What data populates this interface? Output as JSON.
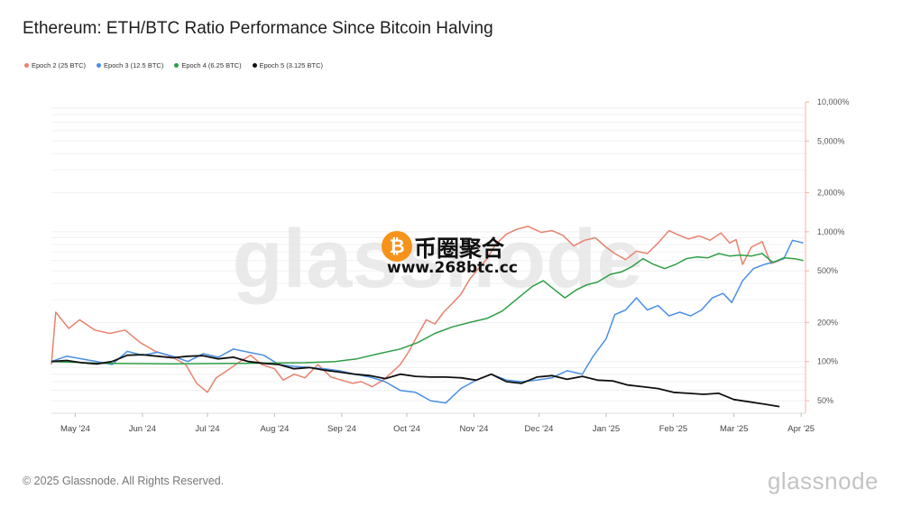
{
  "title": "Ethereum: ETH/BTC Ratio Performance Since Bitcoin Halving",
  "footer": "© 2025 Glassnode. All Rights Reserved.",
  "brand": "glassnode",
  "watermark": "glassnode",
  "overlay": {
    "coin_symbol": "₿",
    "title": "币圈聚合",
    "url": "www.268btc.cc"
  },
  "chart_data": {
    "type": "line",
    "title": "Ethereum: ETH/BTC Ratio Performance Since Bitcoin Halving",
    "xlabel": "",
    "ylabel": "",
    "y_scale": "log",
    "ylim": [
      40,
      10000
    ],
    "x_range": [
      "2024-04-20",
      "2025-04-03"
    ],
    "x_ticks": [
      {
        "date": "2024-05-01",
        "label": "May '24"
      },
      {
        "date": "2024-06-01",
        "label": "Jun '24"
      },
      {
        "date": "2024-07-01",
        "label": "Jul '24"
      },
      {
        "date": "2024-08-01",
        "label": "Aug '24"
      },
      {
        "date": "2024-09-01",
        "label": "Sep '24"
      },
      {
        "date": "2024-10-01",
        "label": "Oct '24"
      },
      {
        "date": "2024-11-01",
        "label": "Nov '24"
      },
      {
        "date": "2024-12-01",
        "label": "Dec '24"
      },
      {
        "date": "2025-01-01",
        "label": "Jan '25"
      },
      {
        "date": "2025-02-01",
        "label": "Feb '25"
      },
      {
        "date": "2025-03-01",
        "label": "Mar '25"
      },
      {
        "date": "2025-04-01",
        "label": "Apr '25"
      }
    ],
    "y_ticks": [
      {
        "value": 50,
        "label": "50%"
      },
      {
        "value": 100,
        "label": "100%"
      },
      {
        "value": 200,
        "label": "200%"
      },
      {
        "value": 500,
        "label": "500%"
      },
      {
        "value": 1000,
        "label": "1,000%"
      },
      {
        "value": 2000,
        "label": "2,000%"
      },
      {
        "value": 5000,
        "label": "5,000%"
      },
      {
        "value": 10000,
        "label": "10,000%"
      }
    ],
    "grid": true,
    "legend_position": "top-left",
    "series": [
      {
        "name": "Epoch 2 (25 BTC)",
        "color": "#e8826e",
        "points": [
          [
            "2024-04-20",
            95
          ],
          [
            "2024-04-22",
            240
          ],
          [
            "2024-04-28",
            180
          ],
          [
            "2024-05-03",
            210
          ],
          [
            "2024-05-10",
            175
          ],
          [
            "2024-05-17",
            165
          ],
          [
            "2024-05-24",
            175
          ],
          [
            "2024-05-31",
            140
          ],
          [
            "2024-06-07",
            120
          ],
          [
            "2024-06-14",
            110
          ],
          [
            "2024-06-21",
            95
          ],
          [
            "2024-06-26",
            68
          ],
          [
            "2024-07-01",
            58
          ],
          [
            "2024-07-05",
            75
          ],
          [
            "2024-07-10",
            85
          ],
          [
            "2024-07-16",
            100
          ],
          [
            "2024-07-21",
            112
          ],
          [
            "2024-07-26",
            95
          ],
          [
            "2024-08-01",
            88
          ],
          [
            "2024-08-05",
            72
          ],
          [
            "2024-08-10",
            80
          ],
          [
            "2024-08-15",
            75
          ],
          [
            "2024-08-21",
            95
          ],
          [
            "2024-08-27",
            76
          ],
          [
            "2024-09-01",
            72
          ],
          [
            "2024-09-06",
            68
          ],
          [
            "2024-09-10",
            70
          ],
          [
            "2024-09-15",
            64
          ],
          [
            "2024-09-20",
            72
          ],
          [
            "2024-09-24",
            82
          ],
          [
            "2024-09-28",
            95
          ],
          [
            "2024-10-02",
            120
          ],
          [
            "2024-10-06",
            160
          ],
          [
            "2024-10-10",
            210
          ],
          [
            "2024-10-14",
            195
          ],
          [
            "2024-10-18",
            240
          ],
          [
            "2024-10-22",
            280
          ],
          [
            "2024-10-26",
            330
          ],
          [
            "2024-10-30",
            430
          ],
          [
            "2024-11-03",
            520
          ],
          [
            "2024-11-07",
            620
          ],
          [
            "2024-11-11",
            800
          ],
          [
            "2024-11-16",
            960
          ],
          [
            "2024-11-21",
            1050
          ],
          [
            "2024-11-26",
            1100
          ],
          [
            "2024-12-02",
            990
          ],
          [
            "2024-12-07",
            1020
          ],
          [
            "2024-12-12",
            940
          ],
          [
            "2024-12-17",
            780
          ],
          [
            "2024-12-22",
            860
          ],
          [
            "2024-12-27",
            900
          ],
          [
            "2025-01-01",
            760
          ],
          [
            "2025-01-05",
            680
          ],
          [
            "2025-01-10",
            610
          ],
          [
            "2025-01-15",
            710
          ],
          [
            "2025-01-20",
            680
          ],
          [
            "2025-01-25",
            820
          ],
          [
            "2025-01-30",
            1020
          ],
          [
            "2025-02-03",
            950
          ],
          [
            "2025-02-08",
            880
          ],
          [
            "2025-02-13",
            930
          ],
          [
            "2025-02-18",
            860
          ],
          [
            "2025-02-23",
            980
          ],
          [
            "2025-02-27",
            820
          ],
          [
            "2025-03-02",
            870
          ],
          [
            "2025-03-05",
            560
          ],
          [
            "2025-03-09",
            760
          ],
          [
            "2025-03-14",
            840
          ],
          [
            "2025-03-18",
            570
          ],
          [
            "2025-03-22",
            600
          ]
        ]
      },
      {
        "name": "Epoch 3 (12.5 BTC)",
        "color": "#4a8fe7",
        "points": [
          [
            "2024-04-20",
            100
          ],
          [
            "2024-04-27",
            110
          ],
          [
            "2024-05-04",
            105
          ],
          [
            "2024-05-11",
            100
          ],
          [
            "2024-05-18",
            95
          ],
          [
            "2024-05-25",
            120
          ],
          [
            "2024-06-01",
            112
          ],
          [
            "2024-06-08",
            118
          ],
          [
            "2024-06-15",
            110
          ],
          [
            "2024-06-22",
            100
          ],
          [
            "2024-06-29",
            115
          ],
          [
            "2024-07-06",
            108
          ],
          [
            "2024-07-13",
            125
          ],
          [
            "2024-07-20",
            118
          ],
          [
            "2024-07-27",
            112
          ],
          [
            "2024-08-03",
            95
          ],
          [
            "2024-08-10",
            92
          ],
          [
            "2024-08-17",
            90
          ],
          [
            "2024-08-24",
            88
          ],
          [
            "2024-08-31",
            85
          ],
          [
            "2024-09-07",
            80
          ],
          [
            "2024-09-14",
            76
          ],
          [
            "2024-09-21",
            70
          ],
          [
            "2024-09-28",
            60
          ],
          [
            "2024-10-05",
            58
          ],
          [
            "2024-10-12",
            50
          ],
          [
            "2024-10-19",
            48
          ],
          [
            "2024-10-26",
            62
          ],
          [
            "2024-11-02",
            72
          ],
          [
            "2024-11-09",
            80
          ],
          [
            "2024-11-16",
            72
          ],
          [
            "2024-11-23",
            70
          ],
          [
            "2024-11-30",
            72
          ],
          [
            "2024-12-07",
            75
          ],
          [
            "2024-12-14",
            85
          ],
          [
            "2024-12-21",
            80
          ],
          [
            "2024-12-26",
            110
          ],
          [
            "2025-01-01",
            150
          ],
          [
            "2025-01-05",
            230
          ],
          [
            "2025-01-10",
            250
          ],
          [
            "2025-01-15",
            310
          ],
          [
            "2025-01-20",
            250
          ],
          [
            "2025-01-25",
            270
          ],
          [
            "2025-01-30",
            225
          ],
          [
            "2025-02-04",
            240
          ],
          [
            "2025-02-09",
            225
          ],
          [
            "2025-02-14",
            250
          ],
          [
            "2025-02-19",
            310
          ],
          [
            "2025-02-24",
            335
          ],
          [
            "2025-02-28",
            285
          ],
          [
            "2025-03-05",
            420
          ],
          [
            "2025-03-10",
            520
          ],
          [
            "2025-03-15",
            560
          ],
          [
            "2025-03-20",
            590
          ],
          [
            "2025-03-24",
            620
          ],
          [
            "2025-03-28",
            860
          ],
          [
            "2025-04-02",
            820
          ]
        ]
      },
      {
        "name": "Epoch 4 (6.25 BTC)",
        "color": "#2e9e46",
        "points": [
          [
            "2024-04-20",
            100
          ],
          [
            "2024-05-15",
            97
          ],
          [
            "2024-06-15",
            96
          ],
          [
            "2024-07-15",
            97
          ],
          [
            "2024-08-15",
            98
          ],
          [
            "2024-08-29",
            100
          ],
          [
            "2024-09-08",
            105
          ],
          [
            "2024-09-18",
            115
          ],
          [
            "2024-09-28",
            125
          ],
          [
            "2024-10-06",
            140
          ],
          [
            "2024-10-14",
            165
          ],
          [
            "2024-10-22",
            185
          ],
          [
            "2024-10-30",
            200
          ],
          [
            "2024-11-07",
            215
          ],
          [
            "2024-11-14",
            245
          ],
          [
            "2024-11-22",
            315
          ],
          [
            "2024-11-28",
            380
          ],
          [
            "2024-12-03",
            420
          ],
          [
            "2024-12-08",
            360
          ],
          [
            "2024-12-13",
            310
          ],
          [
            "2024-12-18",
            355
          ],
          [
            "2024-12-23",
            390
          ],
          [
            "2024-12-28",
            410
          ],
          [
            "2025-01-03",
            470
          ],
          [
            "2025-01-08",
            490
          ],
          [
            "2025-01-13",
            540
          ],
          [
            "2025-01-18",
            620
          ],
          [
            "2025-01-23",
            560
          ],
          [
            "2025-01-28",
            520
          ],
          [
            "2025-02-02",
            560
          ],
          [
            "2025-02-07",
            620
          ],
          [
            "2025-02-12",
            640
          ],
          [
            "2025-02-17",
            630
          ],
          [
            "2025-02-22",
            680
          ],
          [
            "2025-02-27",
            650
          ],
          [
            "2025-03-04",
            660
          ],
          [
            "2025-03-09",
            650
          ],
          [
            "2025-03-14",
            680
          ],
          [
            "2025-03-19",
            580
          ],
          [
            "2025-03-24",
            630
          ],
          [
            "2025-03-29",
            620
          ],
          [
            "2025-04-02",
            600
          ]
        ]
      },
      {
        "name": "Epoch 5 (3.125 BTC)",
        "color": "#111111",
        "points": [
          [
            "2024-04-20",
            100
          ],
          [
            "2024-04-27",
            102
          ],
          [
            "2024-05-04",
            98
          ],
          [
            "2024-05-11",
            96
          ],
          [
            "2024-05-18",
            100
          ],
          [
            "2024-05-25",
            112
          ],
          [
            "2024-06-01",
            113
          ],
          [
            "2024-06-08",
            110
          ],
          [
            "2024-06-15",
            107
          ],
          [
            "2024-06-22",
            110
          ],
          [
            "2024-06-29",
            111
          ],
          [
            "2024-07-06",
            105
          ],
          [
            "2024-07-13",
            108
          ],
          [
            "2024-07-20",
            100
          ],
          [
            "2024-07-27",
            97
          ],
          [
            "2024-08-03",
            95
          ],
          [
            "2024-08-10",
            88
          ],
          [
            "2024-08-17",
            90
          ],
          [
            "2024-08-24",
            86
          ],
          [
            "2024-08-31",
            83
          ],
          [
            "2024-09-07",
            80
          ],
          [
            "2024-09-14",
            78
          ],
          [
            "2024-09-21",
            74
          ],
          [
            "2024-09-28",
            80
          ],
          [
            "2024-10-05",
            77
          ],
          [
            "2024-10-12",
            76
          ],
          [
            "2024-10-19",
            76
          ],
          [
            "2024-10-26",
            75
          ],
          [
            "2024-11-02",
            72
          ],
          [
            "2024-11-09",
            80
          ],
          [
            "2024-11-16",
            70
          ],
          [
            "2024-11-23",
            68
          ],
          [
            "2024-11-30",
            76
          ],
          [
            "2024-12-07",
            78
          ],
          [
            "2024-12-14",
            73
          ],
          [
            "2024-12-21",
            77
          ],
          [
            "2024-12-28",
            72
          ],
          [
            "2025-01-04",
            71
          ],
          [
            "2025-01-11",
            66
          ],
          [
            "2025-01-18",
            64
          ],
          [
            "2025-01-25",
            62
          ],
          [
            "2025-02-01",
            58
          ],
          [
            "2025-02-08",
            57
          ],
          [
            "2025-02-15",
            56
          ],
          [
            "2025-02-22",
            57
          ],
          [
            "2025-03-01",
            51
          ],
          [
            "2025-03-08",
            49
          ],
          [
            "2025-03-15",
            47
          ],
          [
            "2025-03-22",
            45
          ]
        ]
      }
    ]
  }
}
